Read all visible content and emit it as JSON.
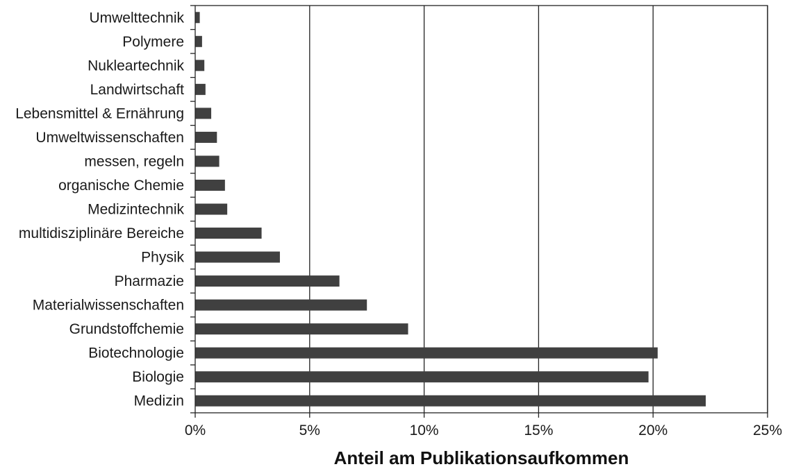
{
  "chart_data": {
    "type": "bar",
    "orientation": "horizontal",
    "title": "",
    "xlabel": "Anteil am Publikationsaufkommen",
    "ylabel": "",
    "xlim": [
      0,
      25
    ],
    "x_ticks": [
      0,
      5,
      10,
      15,
      20,
      25
    ],
    "x_tick_labels": [
      "0%",
      "5%",
      "10%",
      "15%",
      "20%",
      "25%"
    ],
    "grid": "vertical major gridlines",
    "legend": "none",
    "bar_color": "#404040",
    "categories": [
      "Umwelttechnik",
      "Polymere",
      "Nukleartechnik",
      "Landwirtschaft",
      "Lebensmittel & Ernährung",
      "Umweltwissenschaften",
      "messen, regeln",
      "organische Chemie",
      "Medizintechnik",
      "multidisziplinäre Bereiche",
      "Physik",
      "Pharmazie",
      "Materialwissenschaften",
      "Grundstoffchemie",
      "Biotechnologie",
      "Biologie",
      "Medizin"
    ],
    "values": [
      0.2,
      0.3,
      0.4,
      0.45,
      0.7,
      0.95,
      1.05,
      1.3,
      1.4,
      2.9,
      3.7,
      6.3,
      7.5,
      9.3,
      20.2,
      19.8,
      22.3
    ]
  }
}
